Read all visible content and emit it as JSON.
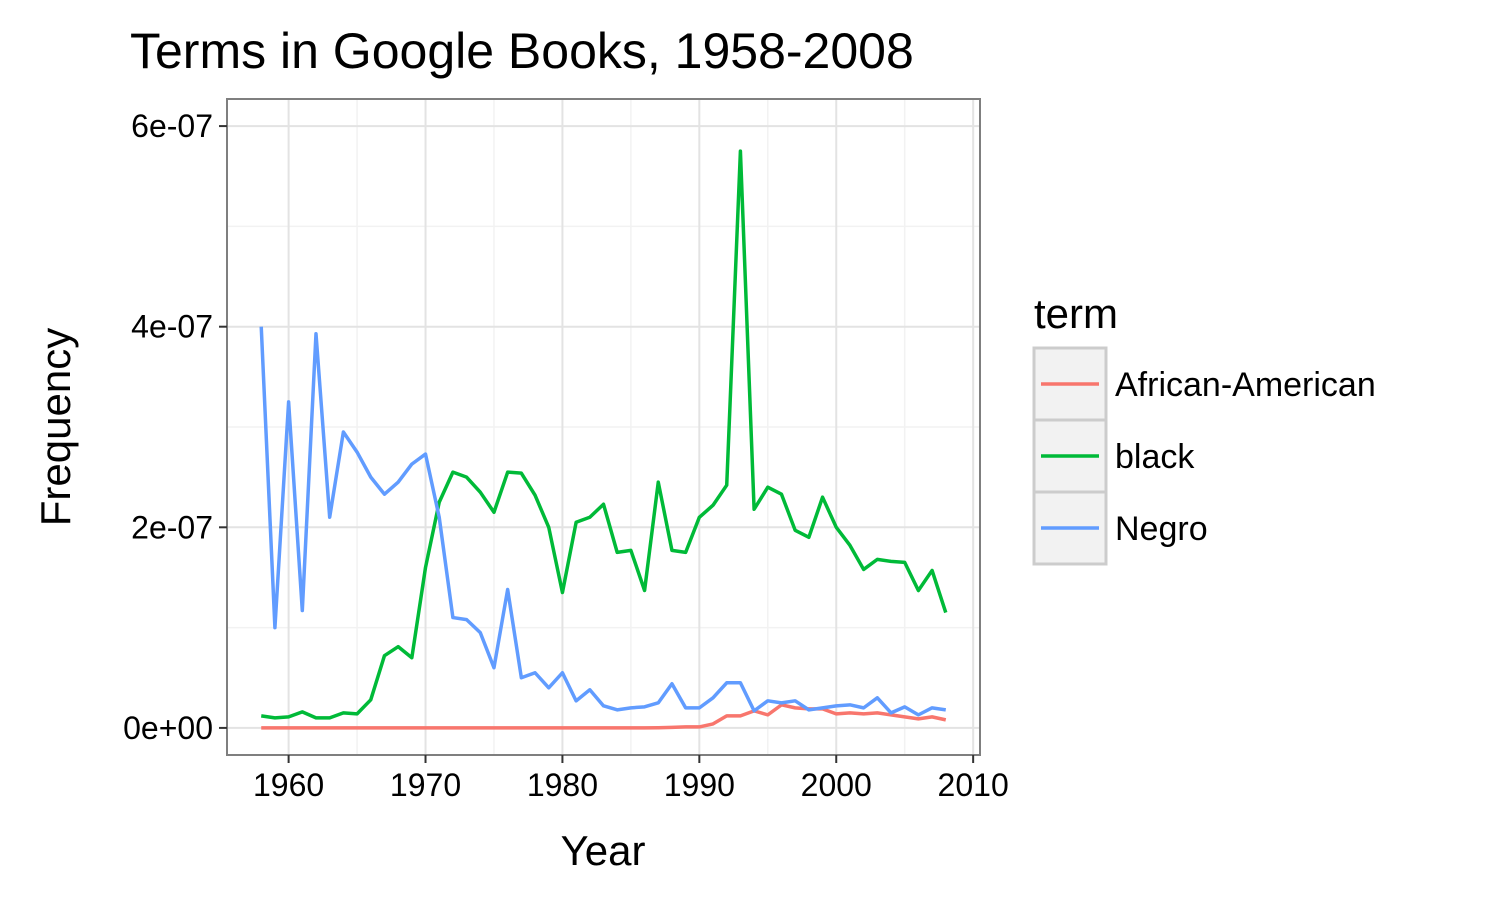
{
  "chart_data": {
    "type": "line",
    "title": "Terms in Google Books, 1958-2008",
    "xlabel": "Year",
    "ylabel": "Frequency",
    "xlim": [
      1955.5,
      2010.5
    ],
    "ylim": [
      -2.7e-08,
      6.27e-07
    ],
    "xticks": [
      1960,
      1970,
      1980,
      1990,
      2000,
      2010
    ],
    "xtick_labels": [
      "1960",
      "1970",
      "1980",
      "1990",
      "2000",
      "2010"
    ],
    "yticks": [
      0,
      2e-07,
      4e-07,
      6e-07
    ],
    "ytick_labels": [
      "0e+00",
      "2e-07",
      "4e-07",
      "6e-07"
    ],
    "grid": true,
    "legend": {
      "title": "term",
      "position": "right"
    },
    "x": [
      1958,
      1959,
      1960,
      1961,
      1962,
      1963,
      1964,
      1965,
      1966,
      1967,
      1968,
      1969,
      1970,
      1971,
      1972,
      1973,
      1974,
      1975,
      1976,
      1977,
      1978,
      1979,
      1980,
      1981,
      1982,
      1983,
      1984,
      1985,
      1986,
      1987,
      1988,
      1989,
      1990,
      1991,
      1992,
      1993,
      1994,
      1995,
      1996,
      1997,
      1998,
      1999,
      2000,
      2001,
      2002,
      2003,
      2004,
      2005,
      2006,
      2007,
      2008
    ],
    "series": [
      {
        "name": "African-American",
        "color": "#F8766D",
        "values": [
          0,
          0,
          0,
          0,
          0,
          0,
          0,
          0,
          0,
          0,
          0,
          0,
          0,
          0,
          0,
          0,
          0,
          0,
          0,
          0,
          0,
          0,
          0,
          0,
          0,
          0,
          0,
          1e-10,
          1e-10,
          2e-10,
          5e-10,
          1e-09,
          1e-09,
          4e-09,
          1.2e-08,
          1.2e-08,
          1.7e-08,
          1.3e-08,
          2.3e-08,
          2e-08,
          1.9e-08,
          1.9e-08,
          1.4e-08,
          1.5e-08,
          1.4e-08,
          1.5e-08,
          1.3e-08,
          1.1e-08,
          9e-09,
          1.1e-08,
          8e-09
        ]
      },
      {
        "name": "black",
        "color": "#00BA38",
        "values": [
          1.2e-08,
          1e-08,
          1.1e-08,
          1.6e-08,
          1e-08,
          1e-08,
          1.5e-08,
          1.4e-08,
          2.8e-08,
          7.2e-08,
          8.1e-08,
          7e-08,
          1.6e-07,
          2.25e-07,
          2.55e-07,
          2.5e-07,
          2.35e-07,
          2.15e-07,
          2.55e-07,
          2.54e-07,
          2.32e-07,
          2e-07,
          1.35e-07,
          2.05e-07,
          2.1e-07,
          2.23e-07,
          1.75e-07,
          1.77e-07,
          1.37e-07,
          2.45e-07,
          1.77e-07,
          1.75e-07,
          2.1e-07,
          2.22e-07,
          2.42e-07,
          5.75e-07,
          2.18e-07,
          2.4e-07,
          2.33e-07,
          1.97e-07,
          1.9e-07,
          2.3e-07,
          2e-07,
          1.82e-07,
          1.58e-07,
          1.68e-07,
          1.66e-07,
          1.65e-07,
          1.37e-07,
          1.57e-07,
          1.15e-07
        ]
      },
      {
        "name": "Negro",
        "color": "#619CFF",
        "values": [
          4e-07,
          1e-07,
          3.25e-07,
          1.17e-07,
          3.93e-07,
          2.1e-07,
          2.95e-07,
          2.75e-07,
          2.5e-07,
          2.33e-07,
          2.45e-07,
          2.63e-07,
          2.73e-07,
          2.1e-07,
          1.1e-07,
          1.08e-07,
          9.5e-08,
          6e-08,
          1.38e-07,
          5e-08,
          5.5e-08,
          4e-08,
          5.5e-08,
          2.7e-08,
          3.8e-08,
          2.2e-08,
          1.8e-08,
          2e-08,
          2.1e-08,
          2.5e-08,
          4.4e-08,
          2e-08,
          2e-08,
          3e-08,
          4.5e-08,
          4.5e-08,
          1.7e-08,
          2.7e-08,
          2.5e-08,
          2.7e-08,
          1.8e-08,
          2e-08,
          2.2e-08,
          2.3e-08,
          2e-08,
          3e-08,
          1.5e-08,
          2.1e-08,
          1.3e-08,
          2e-08,
          1.8e-08
        ]
      }
    ]
  }
}
